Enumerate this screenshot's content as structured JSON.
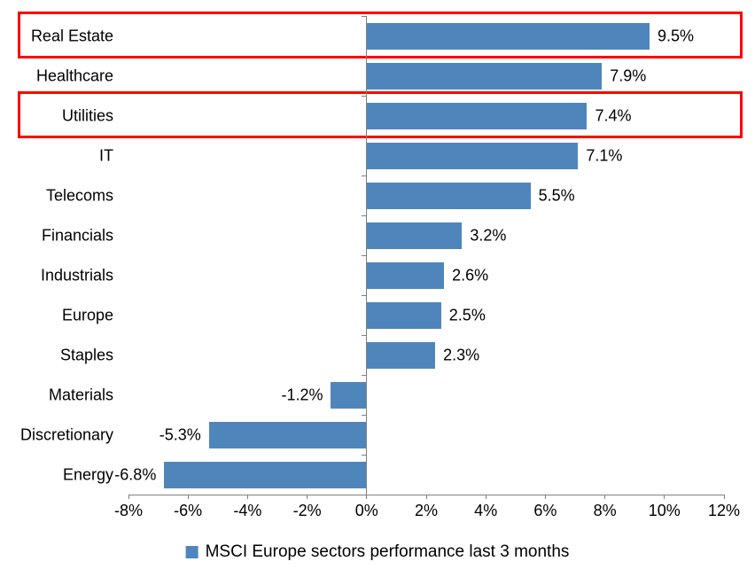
{
  "chart_data": {
    "type": "bar",
    "orientation": "horizontal",
    "title": "",
    "categories": [
      "Real Estate",
      "Healthcare",
      "Utilities",
      "IT",
      "Telecoms",
      "Financials",
      "Industrials",
      "Europe",
      "Staples",
      "Materials",
      "Discretionary",
      "Energy"
    ],
    "values": [
      9.5,
      7.9,
      7.4,
      7.1,
      5.5,
      3.2,
      2.6,
      2.5,
      2.3,
      -1.2,
      -5.3,
      -6.8
    ],
    "data_labels": [
      "9.5%",
      "7.9%",
      "7.4%",
      "7.1%",
      "5.5%",
      "3.2%",
      "2.6%",
      "2.5%",
      "2.3%",
      "-1.2%",
      "-5.3%",
      "-6.8%"
    ],
    "x_tick_labels": [
      "-8%",
      "-6%",
      "-4%",
      "-2%",
      "0%",
      "2%",
      "4%",
      "6%",
      "8%",
      "10%",
      "12%"
    ],
    "xlim": [
      -8,
      12
    ],
    "grid": false,
    "legend": "MSCI Europe sectors performance last 3 months",
    "legend_position": "bottom-center",
    "bar_color": "#4E86BC",
    "axis_color": "#808080",
    "text_color": "#000000",
    "highlight_color": "#FF0000",
    "highlighted_categories": [
      "Real Estate",
      "Utilities"
    ]
  }
}
